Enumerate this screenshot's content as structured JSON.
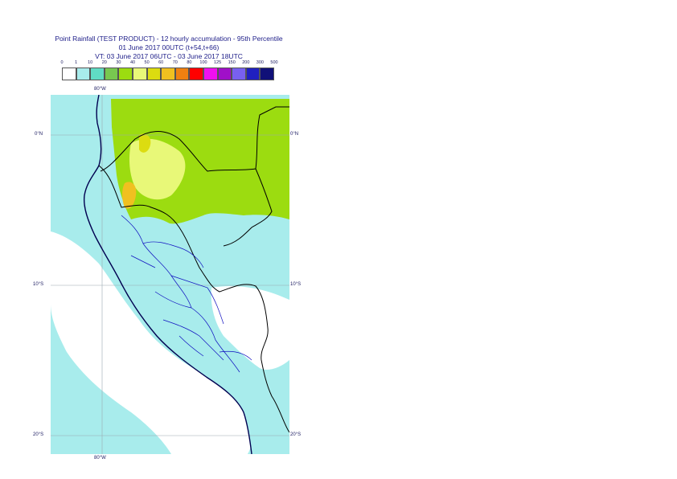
{
  "title": {
    "line1": "Point Rainfall (TEST PRODUCT) - 12 hourly accumulation - 95th Percentile",
    "line2": "01 June 2017 00UTC (t+54,t+66)",
    "line3": "VT: 03 June 2017 06UTC - 03 June 2017 18UTC"
  },
  "legend": {
    "ticks": [
      "0",
      "1",
      "10",
      "20",
      "30",
      "40",
      "50",
      "60",
      "70",
      "80",
      "100",
      "125",
      "150",
      "200",
      "300",
      "500"
    ],
    "colors": [
      "#ffffff",
      "#a8ecec",
      "#60dcc4",
      "#78c850",
      "#9cdc10",
      "#e8f878",
      "#dcdc10",
      "#f0c020",
      "#f08010",
      "#ff0000",
      "#f010f0",
      "#a010c8",
      "#7860f0",
      "#2020c0",
      "#101078"
    ]
  },
  "map": {
    "lat_labels": [
      "0°N",
      "10°S",
      "20°S"
    ],
    "lon_labels": [
      "80°W",
      "80°W"
    ],
    "colors": {
      "ocean_light": "#a8ecec",
      "land_light": "#60dcc4",
      "green": "#9cdc10",
      "light_green": "#e8f878",
      "yellow": "#dcdc10",
      "orange": "#f0c020",
      "dry": "#ffffff",
      "coast": "#000050",
      "border": "#000000",
      "admin": "#1010c0",
      "grid": "#9aa8b0"
    }
  }
}
